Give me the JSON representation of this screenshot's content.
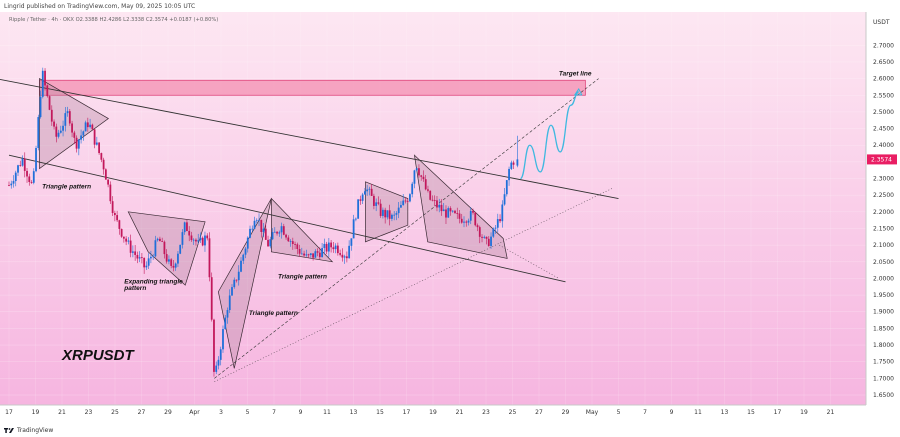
{
  "header": {
    "publisher_text": "Lingrid published on TradingView.com, May 09, 2025 10:05 UTC",
    "symbol_line": "Ripple / Tether · 4h · OKX   O2.3388  H2.4286  L2.3338  C2.3574  +0.0187 (+0.80%)"
  },
  "footer": {
    "brand": "TradingView"
  },
  "colors": {
    "bg_top": "#fde7f2",
    "bg_bottom": "#f6b5e0",
    "candle_up": "#1f6fd9",
    "candle_down": "#c2185b",
    "target_zone_fill": "#f48fb1",
    "target_zone_stroke": "#e0457b",
    "pattern_fill": "#b3849f",
    "trend_line": "#333333",
    "projection": "#3fb8e0",
    "price_tag": "#e91e63"
  },
  "chart_data": {
    "type": "candlestick",
    "symbol": "XRPUSDT",
    "title": "XRPUSDT",
    "timeframe": "4h",
    "exchange": "OKX",
    "ohlc_last": {
      "open": 2.3388,
      "high": 2.4286,
      "low": 2.3338,
      "close": 2.3574,
      "change": 0.0187,
      "change_pct": 0.8
    },
    "current_price_label": "2.3574",
    "y_axis": {
      "currency": "USDT",
      "range": [
        1.62,
        2.8
      ],
      "ticks": [
        "2.7000",
        "2.6500",
        "2.6000",
        "2.5500",
        "2.5000",
        "2.4500",
        "2.4000",
        "2.3500",
        "2.3000",
        "2.2500",
        "2.2000",
        "2.1500",
        "2.1000",
        "2.0500",
        "2.0000",
        "1.9500",
        "1.9000",
        "1.8500",
        "1.8000",
        "1.7500",
        "1.7000",
        "1.6500"
      ]
    },
    "x_axis": {
      "ticks": [
        "17",
        "19",
        "21",
        "23",
        "25",
        "27",
        "29",
        "Apr",
        "3",
        "5",
        "7",
        "9",
        "11",
        "13",
        "15",
        "17",
        "19",
        "21",
        "23",
        "25",
        "27",
        "29",
        "May",
        "5",
        "7",
        "9",
        "11",
        "13",
        "15",
        "17",
        "19",
        "21"
      ]
    },
    "price_path": [
      {
        "x": 0,
        "y": 2.28
      },
      {
        "x": 1,
        "y": 2.36
      },
      {
        "x": 1.8,
        "y": 2.27
      },
      {
        "x": 2.5,
        "y": 2.62
      },
      {
        "x": 3.5,
        "y": 2.42
      },
      {
        "x": 4.5,
        "y": 2.5
      },
      {
        "x": 5,
        "y": 2.4
      },
      {
        "x": 6,
        "y": 2.47
      },
      {
        "x": 7.2,
        "y": 2.33
      },
      {
        "x": 8,
        "y": 2.18
      },
      {
        "x": 9,
        "y": 2.1
      },
      {
        "x": 10.3,
        "y": 2.03
      },
      {
        "x": 11.3,
        "y": 2.12
      },
      {
        "x": 12.3,
        "y": 2.02
      },
      {
        "x": 13.3,
        "y": 2.16
      },
      {
        "x": 14.3,
        "y": 2.1
      },
      {
        "x": 15,
        "y": 2.13
      },
      {
        "x": 15.5,
        "y": 1.69
      },
      {
        "x": 16.5,
        "y": 1.92
      },
      {
        "x": 17.3,
        "y": 2.02
      },
      {
        "x": 18.6,
        "y": 2.2
      },
      {
        "x": 19.5,
        "y": 2.1
      },
      {
        "x": 20.5,
        "y": 2.16
      },
      {
        "x": 21.5,
        "y": 2.1
      },
      {
        "x": 22.5,
        "y": 2.06
      },
      {
        "x": 23.4,
        "y": 2.08
      },
      {
        "x": 24.5,
        "y": 2.1
      },
      {
        "x": 25.5,
        "y": 2.07
      },
      {
        "x": 26.2,
        "y": 2.2
      },
      {
        "x": 26.8,
        "y": 2.28
      },
      {
        "x": 28,
        "y": 2.2
      },
      {
        "x": 29,
        "y": 2.18
      },
      {
        "x": 30.2,
        "y": 2.25
      },
      {
        "x": 30.7,
        "y": 2.35
      },
      {
        "x": 31.7,
        "y": 2.24
      },
      {
        "x": 32.8,
        "y": 2.2
      },
      {
        "x": 34,
        "y": 2.18
      },
      {
        "x": 35,
        "y": 2.19
      },
      {
        "x": 36,
        "y": 2.1
      },
      {
        "x": 36.5,
        "y": 2.13
      },
      {
        "x": 37.2,
        "y": 2.2
      },
      {
        "x": 37.8,
        "y": 2.34
      },
      {
        "x": 38.2,
        "y": 2.36
      }
    ],
    "target_zone": {
      "from": 2.55,
      "to": 2.595
    },
    "projection": [
      {
        "x": 38.6,
        "y": 2.3
      },
      {
        "x": 39.3,
        "y": 2.4
      },
      {
        "x": 40.1,
        "y": 2.32
      },
      {
        "x": 40.9,
        "y": 2.46
      },
      {
        "x": 41.6,
        "y": 2.38
      },
      {
        "x": 42.4,
        "y": 2.52
      },
      {
        "x": 43,
        "y": 2.56
      }
    ],
    "lines": [
      {
        "name": "upper-trendline",
        "style": "solid",
        "from": {
          "x": -1,
          "y": 2.6
        },
        "to": {
          "x": 46,
          "y": 2.24
        }
      },
      {
        "name": "lower-trendline",
        "style": "solid",
        "from": {
          "x": 0,
          "y": 2.37
        },
        "to": {
          "x": 42,
          "y": 1.99
        }
      },
      {
        "name": "dashed-channel-top",
        "style": "dashed",
        "from": {
          "x": 15.5,
          "y": 1.7
        },
        "to": {
          "x": 44.5,
          "y": 2.6
        }
      },
      {
        "name": "dotted-support",
        "style": "dotted",
        "from": {
          "x": 15.5,
          "y": 1.69
        },
        "to": {
          "x": 45.5,
          "y": 2.27
        }
      },
      {
        "name": "dotted-falling-wedge",
        "style": "dotted",
        "from": {
          "x": 37,
          "y": 2.1
        },
        "to": {
          "x": 41.5,
          "y": 2.0
        }
      }
    ],
    "patterns": [
      {
        "name": "triangle-1",
        "points": [
          [
            2.3,
            2.6
          ],
          [
            7.5,
            2.48
          ],
          [
            2.3,
            2.33
          ]
        ]
      },
      {
        "name": "expanding-triangle",
        "points": [
          [
            9,
            2.2
          ],
          [
            14.8,
            2.17
          ],
          [
            13.3,
            1.98
          ],
          [
            10.5,
            2.08
          ]
        ]
      },
      {
        "name": "triangle-2",
        "points": [
          [
            15.8,
            1.96
          ],
          [
            19.8,
            2.24
          ],
          [
            17,
            1.73
          ]
        ]
      },
      {
        "name": "triangle-3",
        "points": [
          [
            19.8,
            2.24
          ],
          [
            24.4,
            2.05
          ],
          [
            19.8,
            2.08
          ]
        ]
      },
      {
        "name": "rect-1",
        "points": [
          [
            26.9,
            2.29
          ],
          [
            30.1,
            2.24
          ],
          [
            30.1,
            2.16
          ],
          [
            26.9,
            2.11
          ]
        ]
      },
      {
        "name": "rect-2",
        "points": [
          [
            30.6,
            2.37
          ],
          [
            37.3,
            2.12
          ],
          [
            37.6,
            2.06
          ],
          [
            31.6,
            2.11
          ]
        ]
      }
    ],
    "annotations": [
      {
        "text": "Target line",
        "x": 41.5,
        "y": 2.61
      },
      {
        "text": "Triangle pattern",
        "x": 2.5,
        "y": 2.27
      },
      {
        "text": "Expanding triangle",
        "x": 8.7,
        "y": 1.985
      },
      {
        "text": "pattern",
        "x": 8.7,
        "y": 1.965
      },
      {
        "text": "Triangle pattern",
        "x": 20.3,
        "y": 2.0
      },
      {
        "text": "Triangle pattern",
        "x": 18.1,
        "y": 1.89
      }
    ]
  }
}
